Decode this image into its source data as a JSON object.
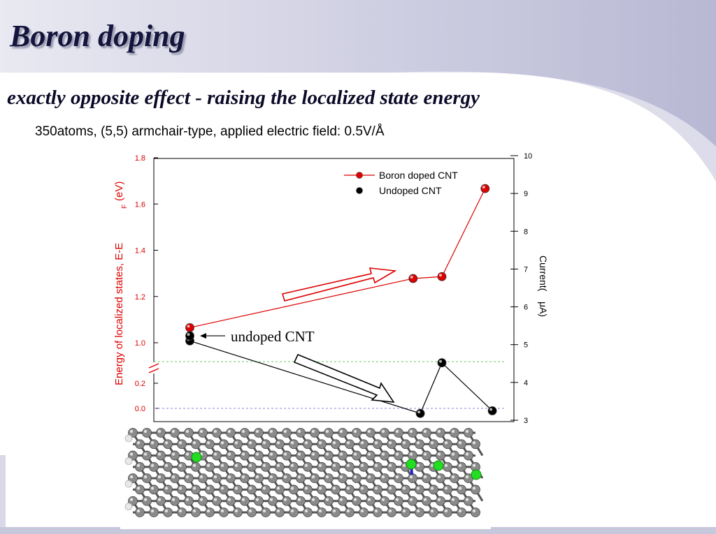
{
  "slide": {
    "title": "Boron doping",
    "subtitle": "exactly opposite effect - raising the localized state energy",
    "conditions": "350atoms, (5,5) armchair-type, applied electric field: 0.5V/Å"
  },
  "colors": {
    "background_band": "#bdbdd8",
    "title": "#14143c",
    "left_axis": "#dd0000",
    "boron_series": "#dd0000",
    "undoped_series": "#000000",
    "green_ref_line": "#66cc66",
    "blue_ref_line": "#8888dd",
    "dopant_atom": "#22dd22",
    "carbon_atom": "#777777"
  },
  "chart_data": {
    "type": "line",
    "ylabel_left_text": "Energy of localized states, E-E",
    "ylabel_left_sub": "F",
    "ylabel_left_unit": "(eV)",
    "ylabel_right_text": "Current(",
    "ylabel_right_unit": "μA)",
    "left_axis_segments": [
      {
        "ylim": [
          0.9,
          1.8
        ],
        "ticks": [
          1.0,
          1.2,
          1.4,
          1.6,
          1.8
        ],
        "labels": [
          "1.0",
          "1.2",
          "1.4",
          "1.6",
          "1.8"
        ]
      },
      {
        "ylim": [
          -0.05,
          0.25
        ],
        "ticks": [
          0.0,
          0.2
        ],
        "labels": [
          "0.0",
          "0.2"
        ]
      }
    ],
    "right_axis": {
      "ylim": [
        3,
        10
      ],
      "ticks": [
        3,
        4,
        5,
        6,
        7,
        8,
        9,
        10
      ],
      "labels": [
        "3",
        "4",
        "5",
        "6",
        "7",
        "8",
        "9",
        "10"
      ]
    },
    "xlim": [
      0,
      1
    ],
    "series": [
      {
        "name": "Boron doped CNT",
        "axis": "right",
        "style": "line+marker",
        "color": "#dd0000",
        "x": [
          0.1,
          0.72,
          0.8,
          0.92
        ],
        "y": [
          5.45,
          6.75,
          6.8,
          9.13
        ]
      },
      {
        "name": "Undoped CNT",
        "axis": "right",
        "style": "line+marker",
        "color": "#000000",
        "x": [
          0.1,
          0.74,
          0.8,
          0.94
        ],
        "y": [
          5.1,
          3.18,
          4.52,
          3.25
        ]
      }
    ],
    "energy_markers": [
      {
        "label": "undoped CNT",
        "energy": 1.03,
        "color": "#000000"
      }
    ],
    "reference_lines": [
      {
        "axis": "right",
        "y": 4.55,
        "color": "#66cc66",
        "style": "dashed"
      },
      {
        "axis": "left_lower",
        "y": 0.0,
        "color": "#8888dd",
        "style": "dashed"
      }
    ],
    "arrows": [
      "up",
      "down"
    ],
    "legend_placement": "top-right"
  },
  "nanotube": {
    "description_labels": [],
    "dopant_count": 4
  }
}
